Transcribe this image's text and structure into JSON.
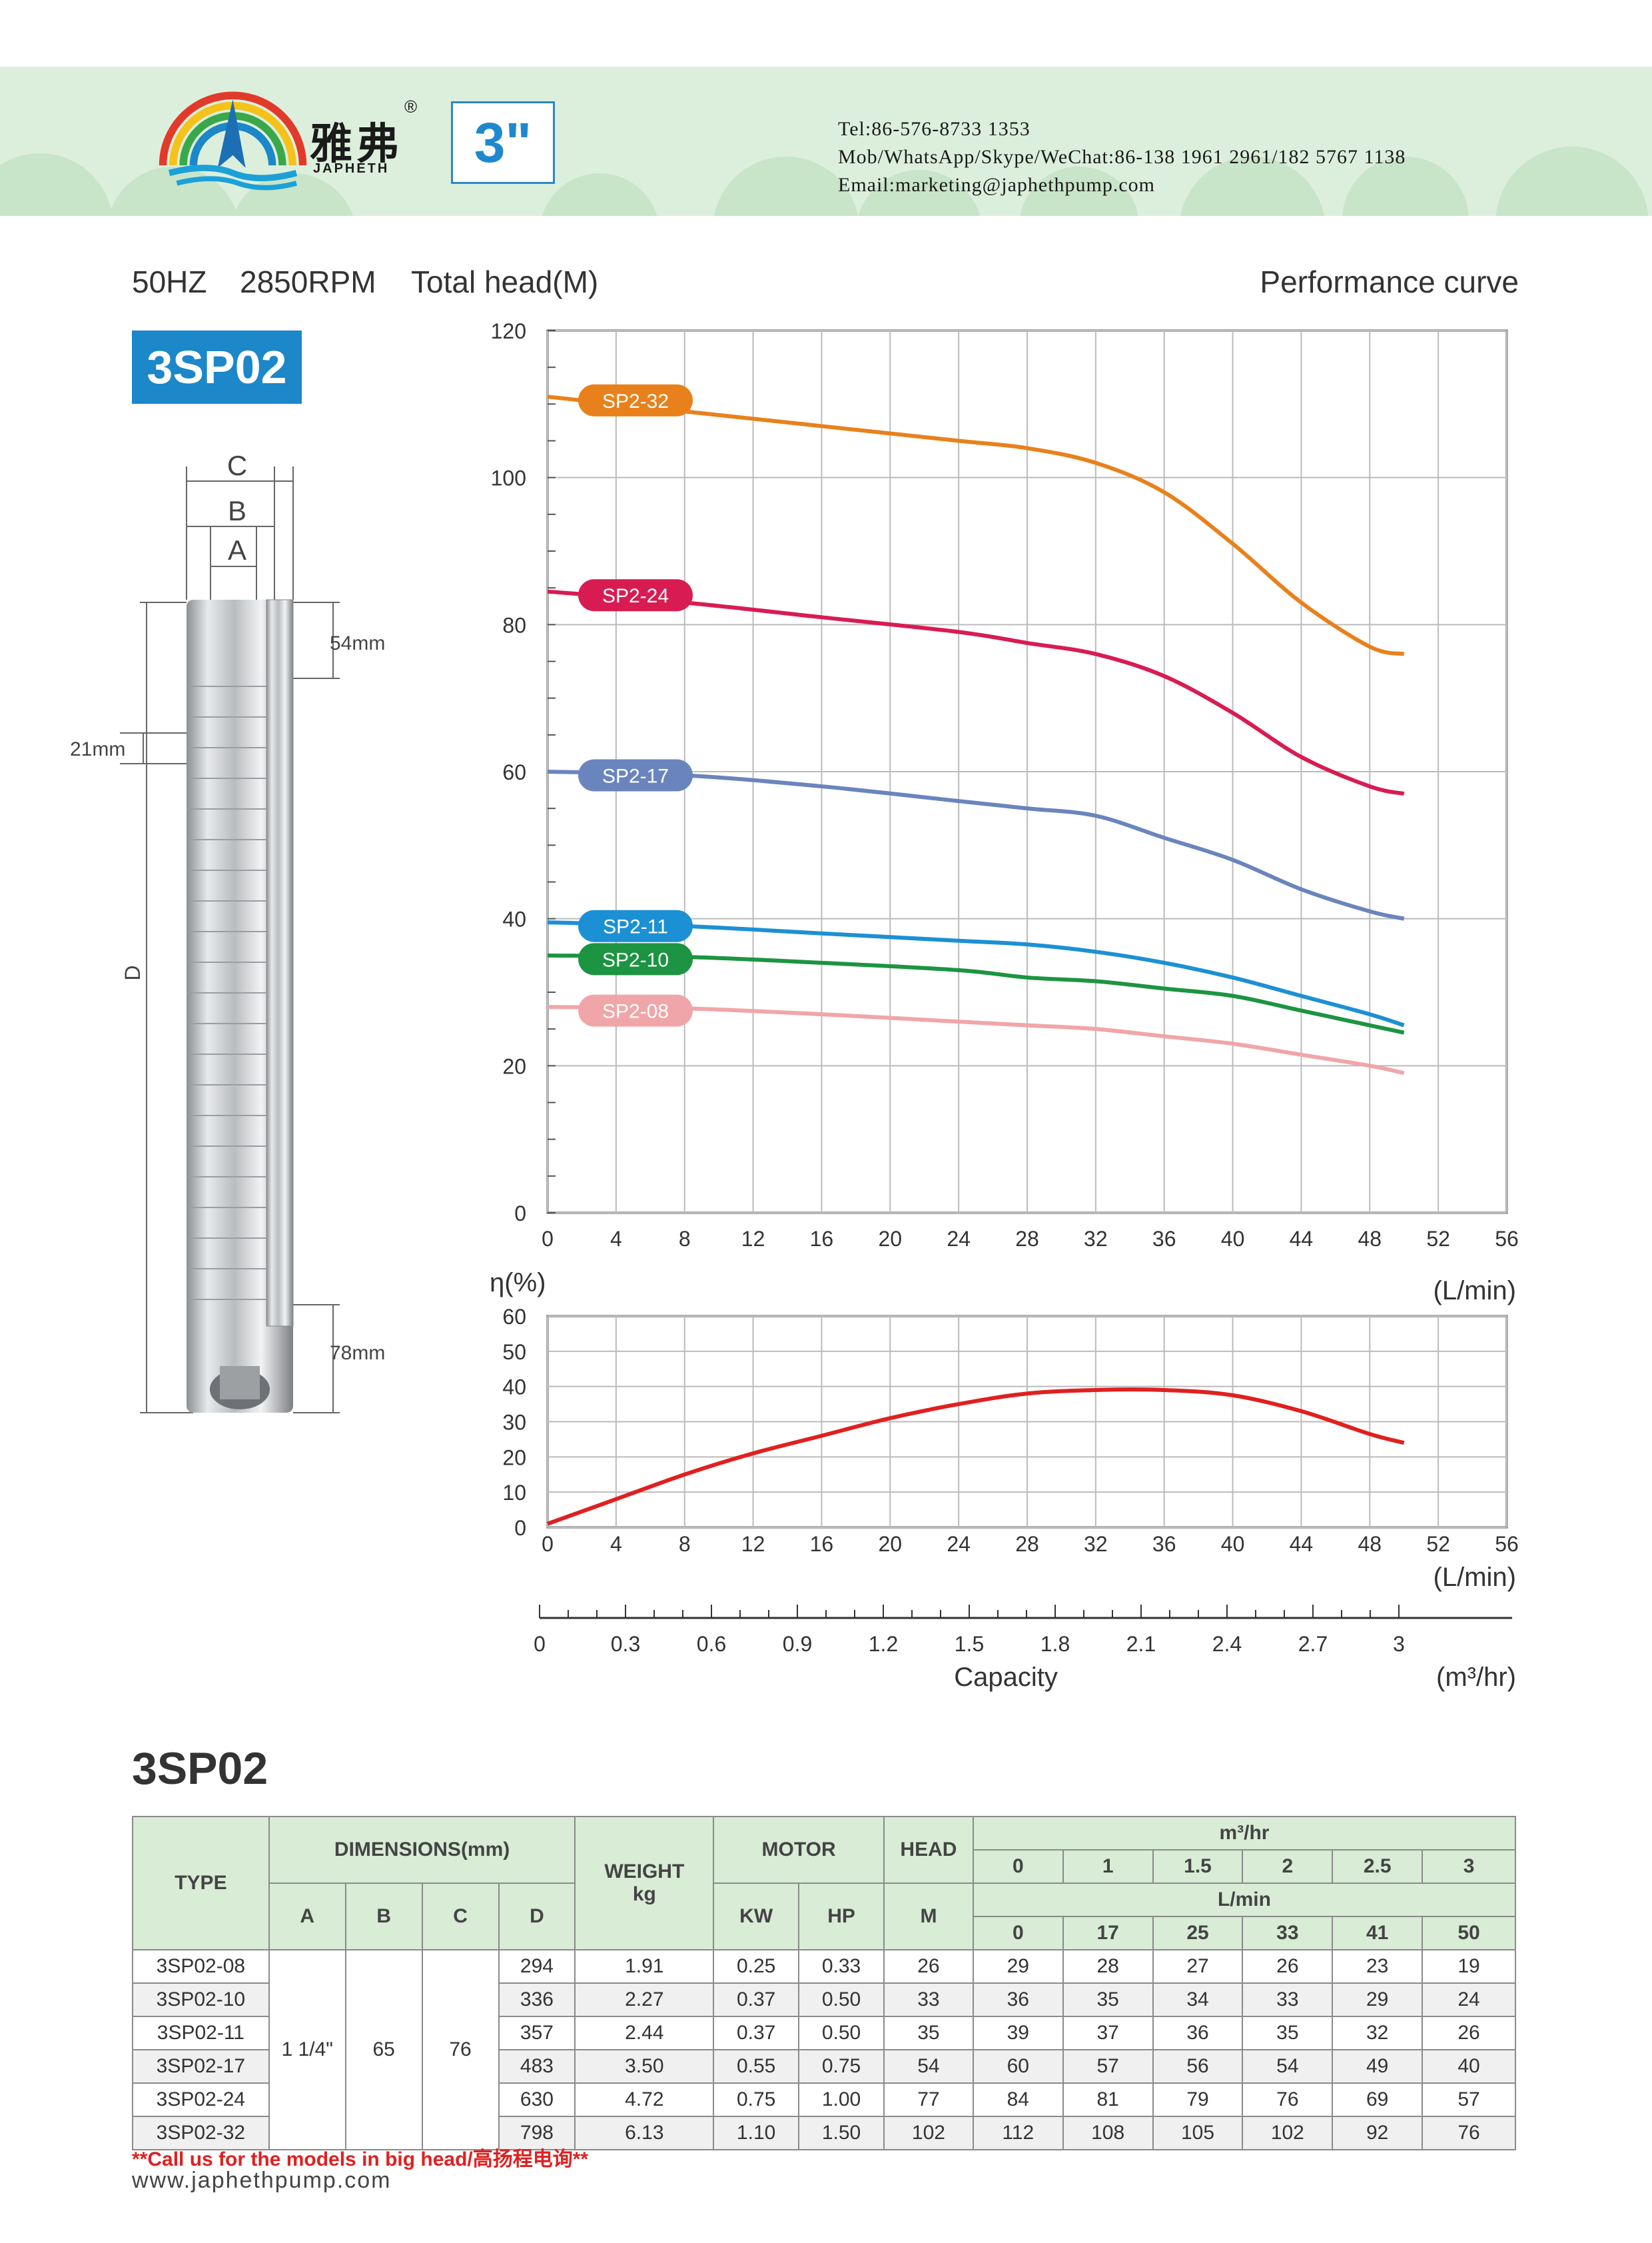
{
  "header": {
    "brand_cn": "雅弗",
    "brand_en": "JAPHETH",
    "registered": "®",
    "size": "3\"",
    "contact": {
      "tel": "Tel:86-576-8733 1353",
      "mob": "Mob/WhatsApp/Skype/WeChat:86-138 1961 2961/182 5767 1138",
      "email": "Email:marketing@japhethpump.com"
    },
    "colors": {
      "band": "#dcefdc",
      "bumps": "#c8e4c9",
      "accent": "#1c87c9"
    }
  },
  "spec": {
    "freq": "50HZ",
    "rpm": "2850RPM"
  },
  "model": "3SP02",
  "perf_title": "Performance curve",
  "diagram": {
    "labels": {
      "C": "C",
      "B": "B",
      "A": "A",
      "D": "D",
      "top": "54mm",
      "stage": "21mm",
      "bottom": "78mm"
    }
  },
  "chart_data": [
    {
      "type": "line",
      "title": "",
      "ylabel": "Total head(M)",
      "xlabel": "(L/min)",
      "xlim": [
        0,
        56
      ],
      "ylim": [
        0,
        120
      ],
      "x_ticks": [
        0,
        4,
        8,
        12,
        16,
        20,
        24,
        28,
        32,
        36,
        40,
        44,
        48,
        52,
        56
      ],
      "y_ticks": [
        0,
        20,
        40,
        60,
        80,
        100,
        120
      ],
      "grid": true,
      "series": [
        {
          "name": "SP2-32",
          "color": "#e8811c",
          "x": [
            0,
            8,
            16,
            24,
            28,
            32,
            36,
            40,
            44,
            48,
            50
          ],
          "y": [
            111,
            109,
            107,
            105,
            104,
            102,
            98,
            91,
            83,
            77,
            76
          ]
        },
        {
          "name": "SP2-24",
          "color": "#d81c52",
          "x": [
            0,
            8,
            16,
            24,
            28,
            32,
            36,
            40,
            44,
            48,
            50
          ],
          "y": [
            84.5,
            83,
            81,
            79,
            77.5,
            76,
            73,
            68,
            62,
            58,
            57
          ]
        },
        {
          "name": "SP2-17",
          "color": "#6a85bd",
          "x": [
            0,
            8,
            16,
            24,
            28,
            32,
            36,
            40,
            44,
            48,
            50
          ],
          "y": [
            60,
            59.5,
            58,
            56,
            55,
            54,
            51,
            48,
            44,
            41,
            40
          ]
        },
        {
          "name": "SP2-11",
          "color": "#1c90d4",
          "x": [
            0,
            8,
            16,
            24,
            28,
            32,
            36,
            40,
            44,
            48,
            50
          ],
          "y": [
            39.5,
            39,
            38,
            37,
            36.5,
            35.5,
            34,
            32,
            29.5,
            27,
            25.5
          ]
        },
        {
          "name": "SP2-10",
          "color": "#1c9441",
          "x": [
            0,
            8,
            16,
            24,
            28,
            32,
            36,
            40,
            44,
            48,
            50
          ],
          "y": [
            35,
            34.8,
            34,
            33,
            32,
            31.5,
            30.5,
            29.5,
            27.5,
            25.5,
            24.5
          ]
        },
        {
          "name": "SP2-08",
          "color": "#f0a6a8",
          "x": [
            0,
            8,
            16,
            24,
            28,
            32,
            36,
            40,
            44,
            48,
            50
          ],
          "y": [
            28,
            27.8,
            27,
            26,
            25.5,
            25,
            24,
            23,
            21.5,
            20,
            19
          ]
        }
      ]
    },
    {
      "type": "line",
      "title": "",
      "ylabel": "η(%)",
      "xlabel": "(L/min)",
      "xlim": [
        0,
        56
      ],
      "ylim": [
        0,
        60
      ],
      "x_ticks": [
        0,
        4,
        8,
        12,
        16,
        20,
        24,
        28,
        32,
        36,
        40,
        44,
        48,
        52,
        56
      ],
      "y_ticks": [
        0,
        10,
        20,
        30,
        40,
        50,
        60
      ],
      "grid": true,
      "series": [
        {
          "color": "#e02020",
          "x": [
            0,
            4,
            8,
            12,
            16,
            20,
            24,
            28,
            32,
            36,
            40,
            44,
            48,
            50
          ],
          "y": [
            1,
            8,
            15,
            21,
            26,
            31,
            35,
            38,
            39,
            39,
            37.5,
            33,
            26.5,
            24
          ]
        }
      ]
    },
    {
      "type": "axis",
      "xlabel": "Capacity",
      "unit": "(m³/hr)",
      "xlim": [
        0,
        3.4
      ],
      "x_ticks": [
        0,
        0.3,
        0.6,
        0.9,
        1.2,
        1.5,
        1.8,
        2.1,
        2.4,
        2.7,
        3
      ],
      "x_tick_labels": [
        "0",
        "0.3",
        "0.6",
        "0.9",
        "1.2",
        "1.5",
        "1.8",
        "2.1",
        "2.4",
        "2.7",
        "3"
      ]
    }
  ],
  "table": {
    "title": "3SP02",
    "headers": {
      "type": "TYPE",
      "dimensions": "DIMENSIONS(mm)",
      "weight": "WEIGHT",
      "weight_unit": "kg",
      "motor": "MOTOR",
      "head": "HEAD",
      "head_unit": "M",
      "m3hr": "m³/hr",
      "lmin": "L/min",
      "a": "A",
      "b": "B",
      "c": "C",
      "d": "D",
      "kw": "KW",
      "hp": "HP"
    },
    "m3hr_values": [
      "0",
      "1",
      "1.5",
      "2",
      "2.5",
      "3"
    ],
    "lmin_values": [
      "0",
      "17",
      "25",
      "33",
      "41",
      "50"
    ],
    "shared": {
      "a": "1 1/4\"",
      "b": "65",
      "c": "76"
    },
    "rows": [
      {
        "type": "3SP02-08",
        "d": "294",
        "weight": "1.91",
        "kw": "0.25",
        "hp": "0.33",
        "head": "26",
        "flows": [
          "29",
          "28",
          "27",
          "26",
          "23",
          "19"
        ]
      },
      {
        "type": "3SP02-10",
        "d": "336",
        "weight": "2.27",
        "kw": "0.37",
        "hp": "0.50",
        "head": "33",
        "flows": [
          "36",
          "35",
          "34",
          "33",
          "29",
          "24"
        ]
      },
      {
        "type": "3SP02-11",
        "d": "357",
        "weight": "2.44",
        "kw": "0.37",
        "hp": "0.50",
        "head": "35",
        "flows": [
          "39",
          "37",
          "36",
          "35",
          "32",
          "26"
        ]
      },
      {
        "type": "3SP02-17",
        "d": "483",
        "weight": "3.50",
        "kw": "0.55",
        "hp": "0.75",
        "head": "54",
        "flows": [
          "60",
          "57",
          "56",
          "54",
          "49",
          "40"
        ]
      },
      {
        "type": "3SP02-24",
        "d": "630",
        "weight": "4.72",
        "kw": "0.75",
        "hp": "1.00",
        "head": "77",
        "flows": [
          "84",
          "81",
          "79",
          "76",
          "69",
          "57"
        ]
      },
      {
        "type": "3SP02-32",
        "d": "798",
        "weight": "6.13",
        "kw": "1.10",
        "hp": "1.50",
        "head": "102",
        "flows": [
          "112",
          "108",
          "105",
          "102",
          "92",
          "76"
        ]
      }
    ]
  },
  "note": "**Call us for the models in big head/高扬程电询**",
  "website": "www.japhethpump.com"
}
